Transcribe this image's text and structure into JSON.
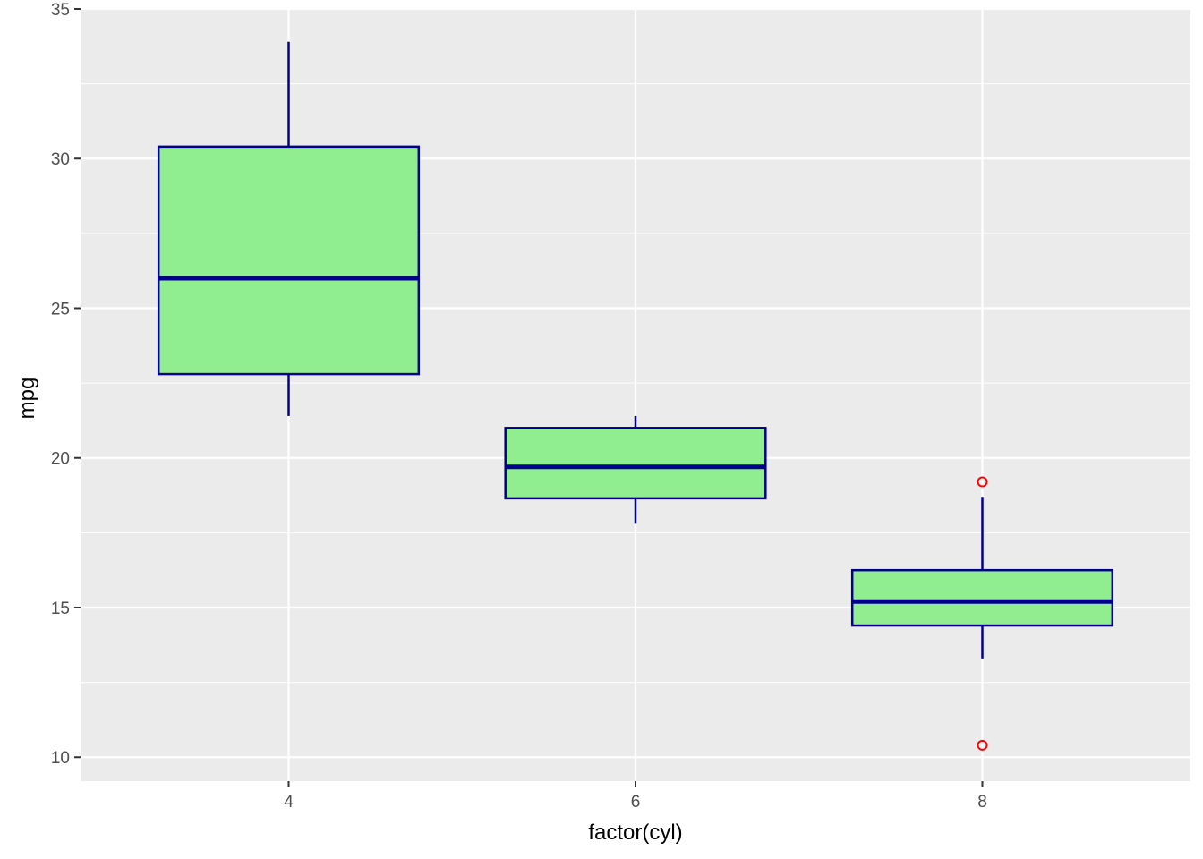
{
  "chart_data": {
    "type": "boxplot",
    "xlabel": "factor(cyl)",
    "ylabel": "mpg",
    "categories": [
      "4",
      "6",
      "8"
    ],
    "ylim": [
      9.2,
      35
    ],
    "y_ticks": [
      10,
      15,
      20,
      25,
      30,
      35
    ],
    "boxes": [
      {
        "category": "4",
        "whisker_low": 21.4,
        "q1": 22.8,
        "median": 26.0,
        "q3": 30.4,
        "whisker_high": 33.9,
        "outliers": []
      },
      {
        "category": "6",
        "whisker_low": 17.8,
        "q1": 18.65,
        "median": 19.7,
        "q3": 21.0,
        "whisker_high": 21.4,
        "outliers": []
      },
      {
        "category": "8",
        "whisker_low": 13.3,
        "q1": 14.4,
        "median": 15.2,
        "q3": 16.25,
        "whisker_high": 18.7,
        "outliers": [
          19.2,
          10.4
        ]
      }
    ],
    "colors": {
      "panel_background": "#ebebeb",
      "grid": "#ffffff",
      "box_fill": "#90ee90",
      "box_outline": "#00008b",
      "outlier": "#ff0000",
      "tick": "#333333"
    },
    "grid": true,
    "legend": "none"
  }
}
